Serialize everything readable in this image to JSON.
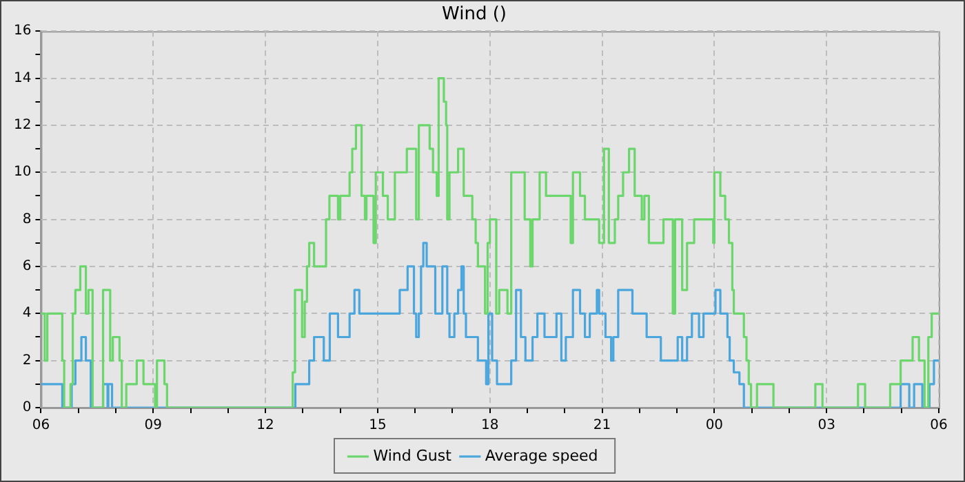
{
  "chart_data": {
    "type": "step",
    "title": "Wind ()",
    "legend": "bottom",
    "grid": true,
    "line_style": "solid",
    "marker": "none",
    "xlim": [
      6,
      30
    ],
    "ylim": [
      0,
      16
    ],
    "xticks": [
      {
        "value": 6,
        "label": "06"
      },
      {
        "value": 7,
        "label": null
      },
      {
        "value": 8,
        "label": null
      },
      {
        "value": 9,
        "label": "09"
      },
      {
        "value": 10,
        "label": null
      },
      {
        "value": 11,
        "label": null
      },
      {
        "value": 12,
        "label": "12"
      },
      {
        "value": 13,
        "label": null
      },
      {
        "value": 14,
        "label": null
      },
      {
        "value": 15,
        "label": "15"
      },
      {
        "value": 16,
        "label": null
      },
      {
        "value": 17,
        "label": null
      },
      {
        "value": 18,
        "label": "18"
      },
      {
        "value": 19,
        "label": null
      },
      {
        "value": 20,
        "label": null
      },
      {
        "value": 21,
        "label": "21"
      },
      {
        "value": 22,
        "label": null
      },
      {
        "value": 23,
        "label": null
      },
      {
        "value": 24,
        "label": "00"
      },
      {
        "value": 25,
        "label": null
      },
      {
        "value": 26,
        "label": null
      },
      {
        "value": 27,
        "label": "03"
      },
      {
        "value": 28,
        "label": null
      },
      {
        "value": 29,
        "label": null
      },
      {
        "value": 30,
        "label": "06"
      }
    ],
    "yticks": [
      0,
      {
        "value": 1,
        "label": null
      },
      2,
      {
        "value": 3,
        "label": null
      },
      4,
      {
        "value": 5,
        "label": null
      },
      6,
      {
        "value": 7,
        "label": null
      },
      8,
      {
        "value": 9,
        "label": null
      },
      10,
      {
        "value": 11,
        "label": null
      },
      12,
      {
        "value": 13,
        "label": null
      },
      14,
      {
        "value": 15,
        "label": null
      },
      16
    ],
    "series": [
      {
        "name": "Wind Gust",
        "color": "#6bd66b",
        "x": [
          6.0,
          6.1,
          6.17,
          6.57,
          6.62,
          6.79,
          6.85,
          6.92,
          7.05,
          7.2,
          7.27,
          7.38,
          7.66,
          7.85,
          7.92,
          8.1,
          8.16,
          8.28,
          8.56,
          8.74,
          9.05,
          9.1,
          9.3,
          9.37,
          12.73,
          12.79,
          12.98,
          13.05,
          13.11,
          13.17,
          13.3,
          13.62,
          13.71,
          13.94,
          14.0,
          14.25,
          14.32,
          14.42,
          14.57,
          14.66,
          14.7,
          14.89,
          14.95,
          15.14,
          15.27,
          15.46,
          15.78,
          16.03,
          16.1,
          16.39,
          16.48,
          16.58,
          16.63,
          16.77,
          16.83,
          16.86,
          16.92,
          17.15,
          17.3,
          17.53,
          17.62,
          17.68,
          17.87,
          17.94,
          18.0,
          18.17,
          18.25,
          18.47,
          18.57,
          18.93,
          19.08,
          19.14,
          19.33,
          19.5,
          20.16,
          20.22,
          20.41,
          20.54,
          20.92,
          21.05,
          21.18,
          21.34,
          21.43,
          21.56,
          21.72,
          21.87,
          22.06,
          22.13,
          22.25,
          22.64,
          22.89,
          22.95,
          23.14,
          23.27,
          23.46,
          23.97,
          24.0,
          24.16,
          24.29,
          24.39,
          24.48,
          24.52,
          24.79,
          24.86,
          24.92,
          24.98,
          25.14,
          25.58,
          26.7,
          26.89,
          27.84,
          28.03,
          28.7,
          28.98,
          29.3,
          29.47,
          29.62,
          29.72,
          29.81,
          30
        ],
        "values": [
          4,
          2,
          4,
          2,
          0,
          1,
          4,
          5,
          6,
          4,
          5,
          0,
          5,
          2,
          3,
          2,
          0,
          1,
          2,
          1,
          0,
          2,
          1,
          0,
          1.5,
          5,
          3,
          4.5,
          6,
          7,
          6,
          8,
          9,
          8,
          9,
          10,
          11,
          12,
          9,
          8,
          9,
          7,
          10,
          9,
          8,
          10,
          11,
          8,
          12,
          11,
          10,
          9,
          14,
          13,
          12,
          8,
          10,
          11,
          9,
          8,
          7,
          6,
          4,
          7,
          8,
          4,
          5,
          4,
          10,
          8,
          6,
          8,
          10,
          9,
          7,
          10,
          9,
          8,
          7,
          11,
          7,
          8,
          9,
          10,
          11,
          9,
          8,
          9,
          7,
          8,
          4,
          8,
          5,
          7,
          8,
          7,
          10,
          9,
          8,
          7,
          5,
          4,
          3,
          2,
          1,
          0,
          1,
          0,
          1,
          0,
          1,
          0,
          1,
          2,
          3,
          2,
          0,
          3,
          4,
          4
        ]
      },
      {
        "name": "Average speed",
        "color": "#4aa6dc",
        "x": [
          6.0,
          6.57,
          6.82,
          6.92,
          7.08,
          7.2,
          7.33,
          7.66,
          7.78,
          7.8,
          7.9,
          12.8,
          13.17,
          13.3,
          13.56,
          13.72,
          13.94,
          14.25,
          14.38,
          14.51,
          15.59,
          15.8,
          15.97,
          16.03,
          16.1,
          16.16,
          16.22,
          16.31,
          16.54,
          16.73,
          16.86,
          16.92,
          17.05,
          17.15,
          17.24,
          17.3,
          17.36,
          17.68,
          17.9,
          17.96,
          18.06,
          18.19,
          18.57,
          18.7,
          18.83,
          18.95,
          19.14,
          19.27,
          19.46,
          19.78,
          19.91,
          20.03,
          20.22,
          20.41,
          20.54,
          20.67,
          20.86,
          20.92,
          21.09,
          21.24,
          21.3,
          21.43,
          21.81,
          22.19,
          22.57,
          23.02,
          23.14,
          23.27,
          23.4,
          23.59,
          23.71,
          24.03,
          24.16,
          24.35,
          24.41,
          24.52,
          24.67,
          24.79,
          28.98,
          29.21,
          29.34,
          29.56,
          29.75,
          29.87,
          30
        ],
        "values": [
          1,
          0,
          1,
          2,
          3,
          2,
          0,
          1,
          0,
          1,
          0,
          1,
          2,
          3,
          2,
          4,
          3,
          4,
          5,
          4,
          5,
          6,
          4,
          3,
          4,
          6,
          7,
          6,
          4,
          6,
          4,
          3,
          4,
          5,
          6,
          4,
          3,
          2,
          1,
          4,
          2,
          1,
          2,
          5,
          3,
          2,
          3,
          4,
          3,
          4,
          2,
          3,
          5,
          4,
          3,
          4,
          5,
          4,
          3,
          2,
          3,
          5,
          4,
          3,
          2,
          3,
          2,
          3,
          4,
          3,
          4,
          5,
          4,
          3,
          2,
          1.5,
          1,
          0,
          1,
          0,
          1,
          0,
          1,
          2,
          2
        ]
      }
    ]
  }
}
